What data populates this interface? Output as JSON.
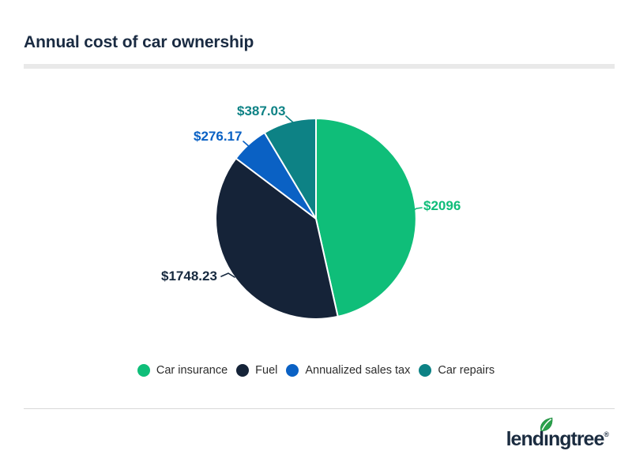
{
  "header": {
    "title": "Annual cost of car ownership"
  },
  "chart_data": {
    "type": "pie",
    "title": "Annual cost of car ownership",
    "categories": [
      "Car insurance",
      "Fuel",
      "Annualized sales tax",
      "Car repairs"
    ],
    "values": [
      2096,
      1748.23,
      276.17,
      387.03
    ],
    "value_labels": [
      "$2096",
      "$1748.23",
      "$276.17",
      "$387.03"
    ],
    "colors": [
      "#0fbe79",
      "#152338",
      "#0a61c4",
      "#0d8285"
    ],
    "label_colors": [
      "#0fbd79",
      "#16293f",
      "#0a61c4",
      "#0d8285"
    ],
    "total": 4507.43,
    "start_angle_deg": 0,
    "direction": "clockwise",
    "legend_position": "bottom"
  },
  "footer": {
    "logo": {
      "brand": "lendingtree",
      "text_pre": "lend",
      "text_i": "ı",
      "text_post": "ngtree",
      "reg_mark": "®",
      "leaf_color": "#2ba14b"
    }
  }
}
